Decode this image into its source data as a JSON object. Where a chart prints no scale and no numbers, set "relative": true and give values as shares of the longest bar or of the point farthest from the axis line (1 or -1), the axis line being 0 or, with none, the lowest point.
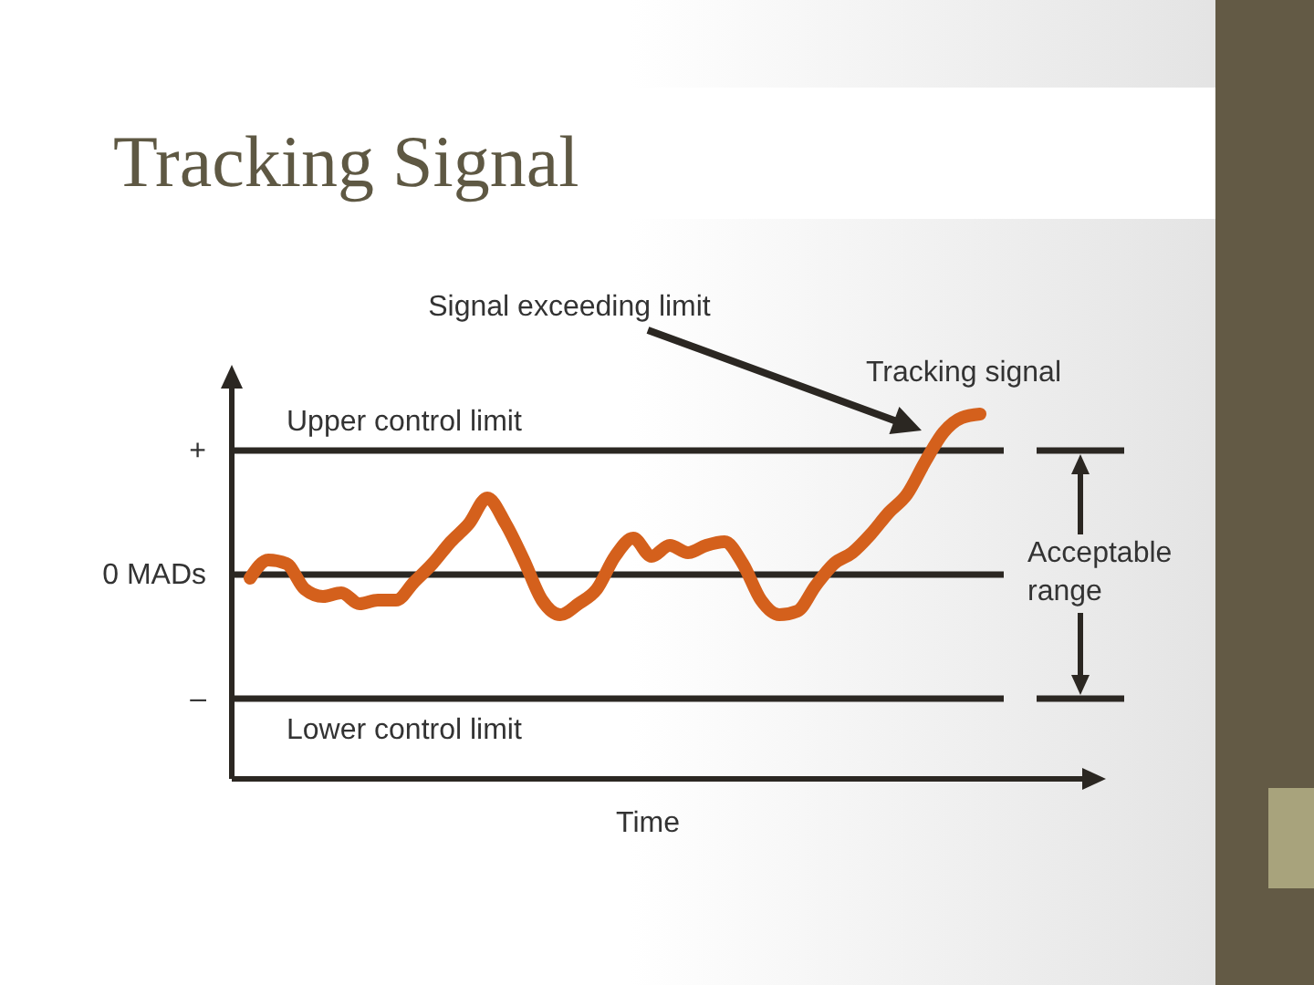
{
  "chart_data": {
    "type": "line",
    "title": "Tracking Signal",
    "xlabel": "Time",
    "relative": true,
    "categories": [
      null,
      null,
      null,
      null,
      null,
      null,
      null,
      null,
      null,
      null,
      null,
      null,
      null,
      null,
      null,
      null,
      null,
      null,
      null,
      null,
      null,
      null,
      null,
      null,
      null,
      null,
      null,
      null,
      null,
      null,
      null,
      null,
      null,
      null,
      null,
      null,
      null,
      null,
      null,
      null,
      null
    ],
    "series": [
      {
        "color": "#d4601c",
        "values": [
          0.55,
          0.6,
          0.59,
          0.52,
          0.5,
          0.51,
          0.48,
          0.49,
          0.49,
          0.54,
          0.59,
          0.65,
          0.7,
          0.77,
          0.7,
          0.6,
          0.49,
          0.45,
          0.48,
          0.52,
          0.61,
          0.66,
          0.61,
          0.64,
          0.62,
          0.64,
          0.65,
          0.59,
          0.49,
          0.45,
          0.46,
          0.53,
          0.59,
          0.62,
          0.67,
          0.73,
          0.78,
          0.87,
          0.95,
          0.99,
          1
        ]
      }
    ],
    "ref_lines": [
      {
        "axis": "y",
        "value": 0.9,
        "label": "Upper control limit",
        "color": "#2b2722"
      },
      {
        "axis": "y",
        "value": 0.56,
        "label": "0 MADs",
        "color": "#2b2722"
      },
      {
        "axis": "y",
        "value": 0.22,
        "label": "Lower control limit",
        "color": "#2b2722"
      }
    ],
    "annotations": [
      "Signal exceeding limit",
      "Acceptable range",
      "+",
      "–",
      "Tracking signal"
    ]
  }
}
